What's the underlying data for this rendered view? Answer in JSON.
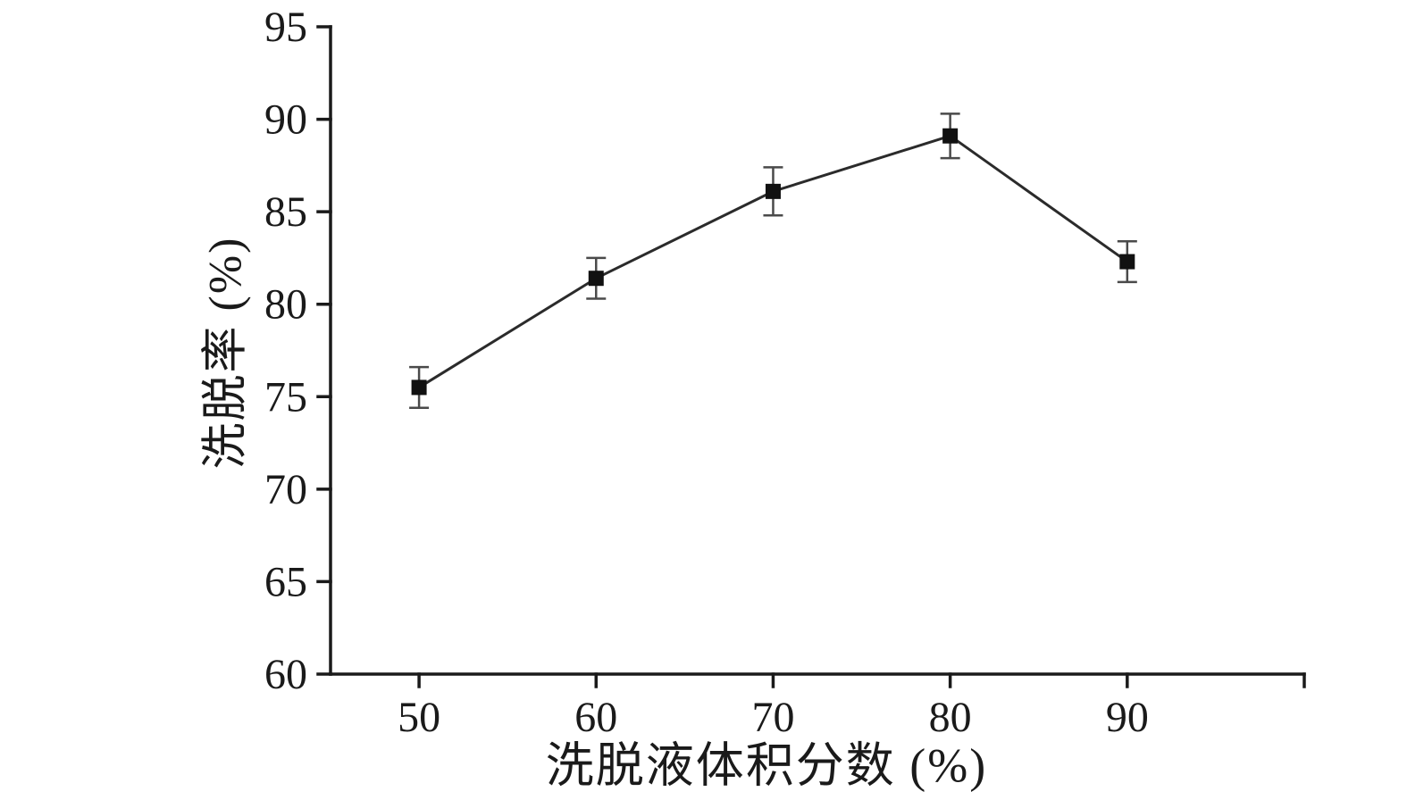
{
  "figure": {
    "background": "#ffffff",
    "axis_color": "#1a1a1a",
    "line_color": "#2b2b2b",
    "marker_color": "#111111",
    "error_bar_color": "#4a4a4a"
  },
  "chart_data": {
    "type": "line",
    "title": "",
    "xlabel": "洗脱液体积分数 (%)",
    "ylabel": "洗脱率 (%)",
    "x": [
      50,
      60,
      70,
      80,
      90
    ],
    "series": [
      {
        "name": "洗脱率",
        "values": [
          75.5,
          81.4,
          86.1,
          89.1,
          82.3
        ],
        "errors": [
          1.1,
          1.1,
          1.3,
          1.2,
          1.1
        ],
        "marker": "filled-square",
        "color": "#2b2b2b"
      }
    ],
    "xlim": [
      45,
      100
    ],
    "ylim": [
      60,
      95
    ],
    "xticks": [
      50,
      60,
      70,
      80,
      90
    ],
    "yticks": [
      60,
      65,
      70,
      75,
      80,
      85,
      90,
      95
    ],
    "extra_xticks": [
      100
    ],
    "grid": false,
    "legend": "none"
  }
}
